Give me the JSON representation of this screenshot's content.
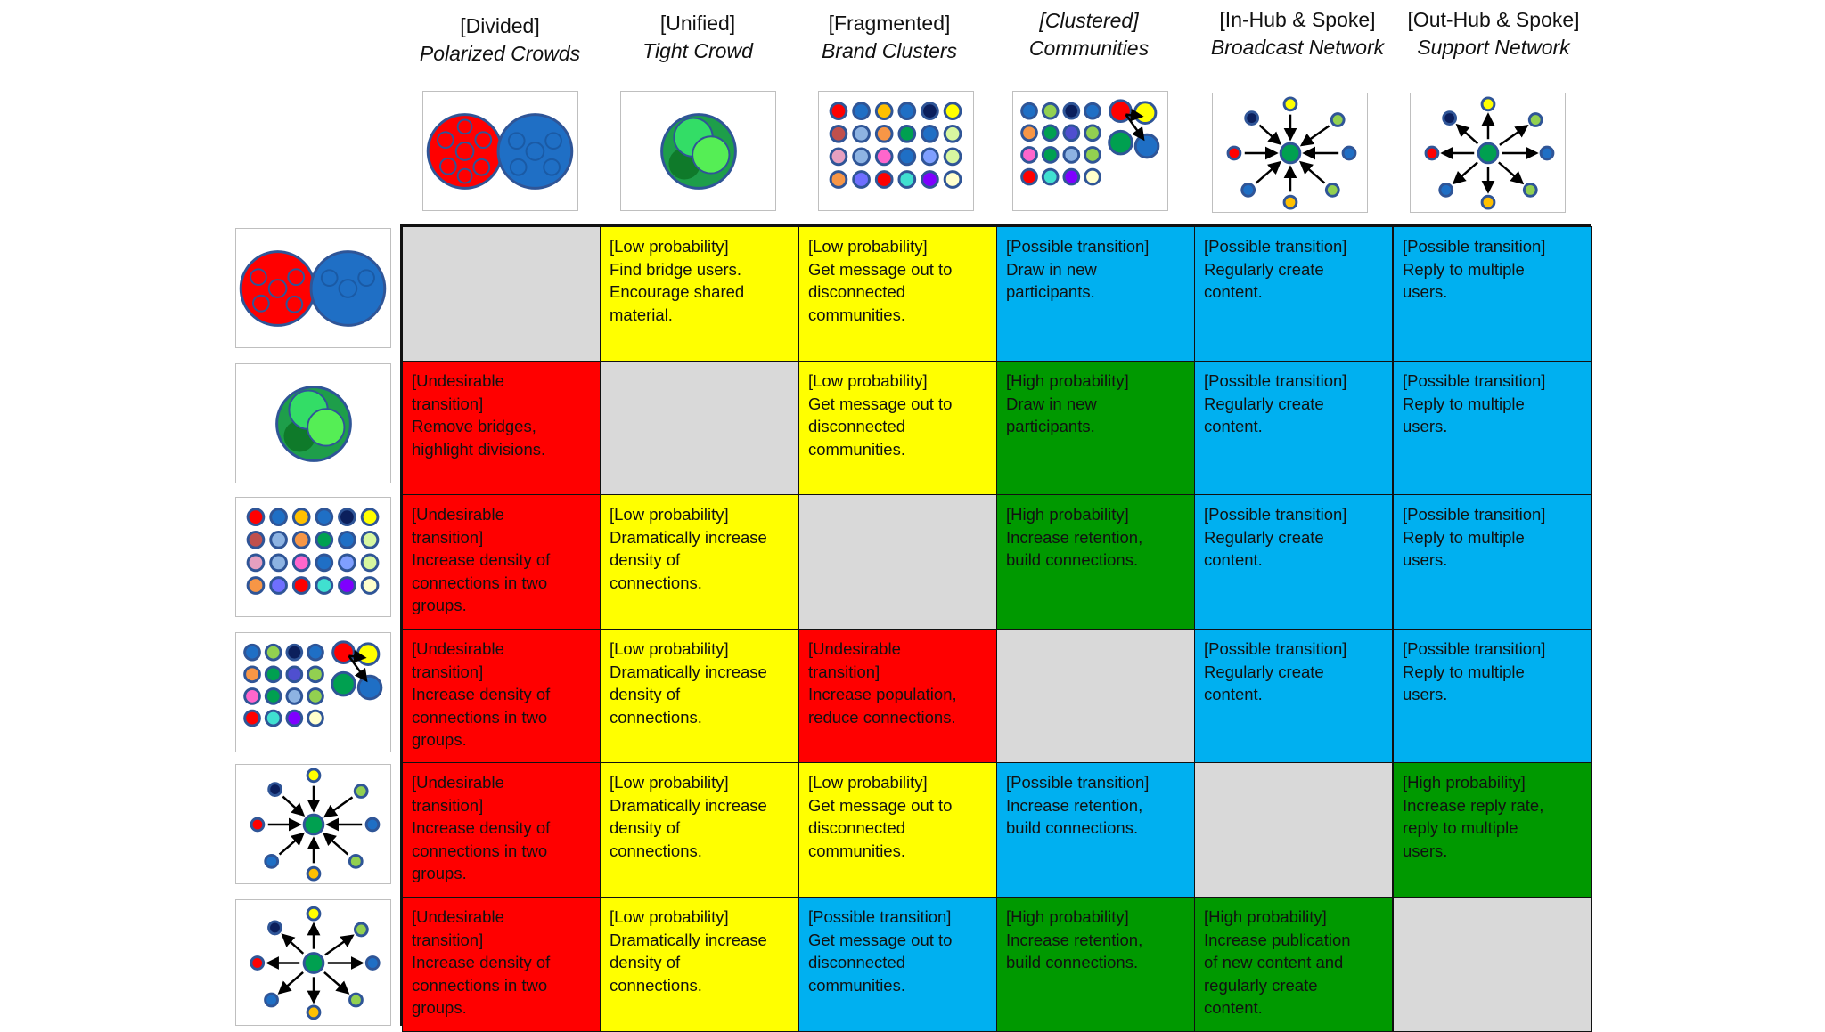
{
  "columns": [
    {
      "line1": "[Divided]",
      "line2": "Polarized Crowds"
    },
    {
      "line1": "[Unified]",
      "line2": "Tight Crowd"
    },
    {
      "line1": "[Fragmented]",
      "line2": "Brand Clusters"
    },
    {
      "line1": "[Clustered]",
      "line2": "Communities"
    },
    {
      "line1": "[In-Hub & Spoke]",
      "line2": "Broadcast Network"
    },
    {
      "line1": "[Out-Hub & Spoke]",
      "line2": "Support Network"
    }
  ],
  "network_icons": [
    "polarized-crowds-icon",
    "tight-crowd-icon",
    "brand-clusters-icon",
    "community-clusters-icon",
    "in-hub-spoke-icon",
    "out-hub-spoke-icon"
  ],
  "colors": {
    "grey": "#d9d9d9",
    "yellow": "#ffff00",
    "red": "#ff0000",
    "blue": "#00b0f0",
    "green": "#009900"
  },
  "matrix": [
    [
      {
        "color": "grey",
        "text": ""
      },
      {
        "color": "yellow",
        "text": "[Low probability]\nFind bridge users.\nEncourage shared\nmaterial."
      },
      {
        "color": "yellow",
        "text": "[Low probability]\nGet message out to\ndisconnected\ncommunities."
      },
      {
        "color": "blue",
        "text": "[Possible transition]\nDraw in new\nparticipants."
      },
      {
        "color": "blue",
        "text": "[Possible transition]\nRegularly create\ncontent."
      },
      {
        "color": "blue",
        "text": "[Possible transition]\nReply to multiple\nusers."
      }
    ],
    [
      {
        "color": "red",
        "text": "[Undesirable\ntransition]\nRemove bridges,\nhighlight divisions."
      },
      {
        "color": "grey",
        "text": ""
      },
      {
        "color": "yellow",
        "text": "[Low probability]\nGet message out to\ndisconnected\ncommunities."
      },
      {
        "color": "green",
        "text": "[High probability]\nDraw in new\nparticipants."
      },
      {
        "color": "blue",
        "text": "[Possible transition]\nRegularly create\ncontent."
      },
      {
        "color": "blue",
        "text": "[Possible transition]\nReply to multiple\nusers."
      }
    ],
    [
      {
        "color": "red",
        "text": "[Undesirable\ntransition]\nIncrease density of\nconnections in two\ngroups."
      },
      {
        "color": "yellow",
        "text": "[Low probability]\nDramatically increase\ndensity of\nconnections."
      },
      {
        "color": "grey",
        "text": ""
      },
      {
        "color": "green",
        "text": "[High probability]\nIncrease retention,\nbuild connections."
      },
      {
        "color": "blue",
        "text": "[Possible transition]\nRegularly create\ncontent."
      },
      {
        "color": "blue",
        "text": "[Possible transition]\nReply to multiple\nusers."
      }
    ],
    [
      {
        "color": "red",
        "text": "[Undesirable\ntransition]\nIncrease density of\nconnections in two\ngroups."
      },
      {
        "color": "yellow",
        "text": "[Low probability]\nDramatically increase\ndensity of\nconnections."
      },
      {
        "color": "red",
        "text": "[Undesirable\ntransition]\nIncrease population,\nreduce connections."
      },
      {
        "color": "grey",
        "text": ""
      },
      {
        "color": "blue",
        "text": "[Possible transition]\nRegularly create\ncontent."
      },
      {
        "color": "blue",
        "text": "[Possible transition]\nReply to multiple\nusers."
      }
    ],
    [
      {
        "color": "red",
        "text": "[Undesirable\ntransition]\nIncrease density of\nconnections in two\ngroups."
      },
      {
        "color": "yellow",
        "text": "[Low probability]\nDramatically increase\ndensity of\nconnections."
      },
      {
        "color": "yellow",
        "text": "[Low probability]\nGet message out to\ndisconnected\ncommunities."
      },
      {
        "color": "blue",
        "text": "[Possible transition]\nIncrease retention,\nbuild connections."
      },
      {
        "color": "grey",
        "text": ""
      },
      {
        "color": "green",
        "text": "[High probability]\nIncrease reply rate,\nreply to multiple\nusers."
      }
    ],
    [
      {
        "color": "red",
        "text": "[Undesirable\ntransition]\nIncrease density of\nconnections in two\ngroups."
      },
      {
        "color": "yellow",
        "text": "[Low probability]\nDramatically increase\ndensity of\nconnections."
      },
      {
        "color": "blue",
        "text": "[Possible transition]\nGet message out to\ndisconnected\ncommunities."
      },
      {
        "color": "green",
        "text": "[High probability]\nIncrease retention,\nbuild connections."
      },
      {
        "color": "green",
        "text": "[High probability]\nIncrease publication\nof new content and\nregularly create\ncontent."
      },
      {
        "color": "grey",
        "text": ""
      }
    ]
  ]
}
